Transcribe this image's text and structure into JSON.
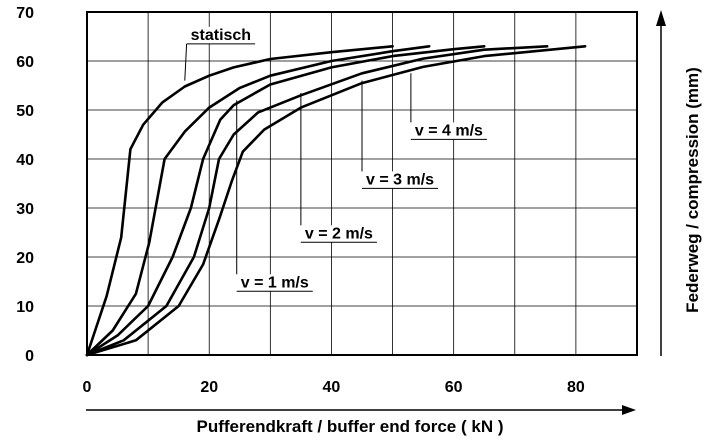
{
  "chart_data": {
    "type": "line",
    "xlabel": "Pufferendkraft / buffer end force ( kN )",
    "ylabel": "Federweg / compression (mm)",
    "xlim": [
      0,
      90
    ],
    "ylim": [
      0,
      70
    ],
    "x_ticks": [
      "0",
      "20",
      "40",
      "60",
      "80"
    ],
    "y_ticks": [
      "0",
      "10",
      "20",
      "30",
      "40",
      "50",
      "60",
      "70"
    ],
    "grid": true,
    "legend": "none",
    "line_color": "#000000",
    "series": [
      {
        "name": "statisch",
        "points": [
          [
            0,
            0
          ],
          [
            3.2,
            12
          ],
          [
            5.6,
            24
          ],
          [
            7.1,
            42
          ],
          [
            9.2,
            47
          ],
          [
            12.3,
            51.5
          ],
          [
            16,
            54.8
          ],
          [
            20,
            57
          ],
          [
            24,
            58.7
          ],
          [
            30,
            60.4
          ],
          [
            40,
            61.8
          ],
          [
            50,
            63
          ]
        ]
      },
      {
        "name": "v = 1 m/s",
        "points": [
          [
            0,
            0
          ],
          [
            4.2,
            5
          ],
          [
            8,
            12.5
          ],
          [
            10.2,
            23
          ],
          [
            12.7,
            40
          ],
          [
            16,
            45.6
          ],
          [
            20,
            50.5
          ],
          [
            25,
            54.5
          ],
          [
            30,
            57
          ],
          [
            40,
            60
          ],
          [
            50,
            62
          ],
          [
            56,
            63
          ]
        ]
      },
      {
        "name": "v = 2 m/s",
        "points": [
          [
            0,
            0
          ],
          [
            5,
            4
          ],
          [
            10,
            10
          ],
          [
            14,
            20
          ],
          [
            17,
            30
          ],
          [
            19,
            40
          ],
          [
            21.8,
            48
          ],
          [
            24,
            51
          ],
          [
            30,
            55.2
          ],
          [
            40,
            58.7
          ],
          [
            50,
            61
          ],
          [
            60,
            62.4
          ],
          [
            65,
            63
          ]
        ]
      },
      {
        "name": "v = 3 m/s",
        "points": [
          [
            0,
            0
          ],
          [
            6,
            3
          ],
          [
            13,
            10
          ],
          [
            17.5,
            20
          ],
          [
            20,
            30
          ],
          [
            21.6,
            40
          ],
          [
            24,
            45
          ],
          [
            28,
            49.5
          ],
          [
            35,
            53
          ],
          [
            45,
            57.5
          ],
          [
            55,
            60.5
          ],
          [
            65,
            62.3
          ],
          [
            75.3,
            63
          ]
        ]
      },
      {
        "name": "v = 4 m/s",
        "points": [
          [
            0,
            0
          ],
          [
            8,
            3
          ],
          [
            15,
            10
          ],
          [
            19,
            18.5
          ],
          [
            21.7,
            28
          ],
          [
            23.7,
            35.5
          ],
          [
            25.5,
            41.5
          ],
          [
            29,
            46
          ],
          [
            35,
            50.5
          ],
          [
            45,
            55.5
          ],
          [
            55,
            58.8
          ],
          [
            65,
            61
          ],
          [
            81.5,
            63
          ]
        ]
      }
    ],
    "labels": [
      {
        "text": "statisch",
        "leader": [
          [
            16,
            56
          ],
          [
            16.3,
            63.5
          ]
        ]
      },
      {
        "text": "v = 1 m/s",
        "leader": [
          [
            24.5,
            52
          ],
          [
            24.5,
            13
          ]
        ]
      },
      {
        "text": "v = 2 m/s",
        "leader": [
          [
            35,
            53.5
          ],
          [
            35,
            23
          ]
        ]
      },
      {
        "text": "v = 3 m/s",
        "leader": [
          [
            45,
            56
          ],
          [
            45,
            34
          ]
        ]
      },
      {
        "text": "v = 4 m/s",
        "leader": [
          [
            53,
            57.5
          ],
          [
            53,
            44
          ]
        ]
      }
    ]
  }
}
